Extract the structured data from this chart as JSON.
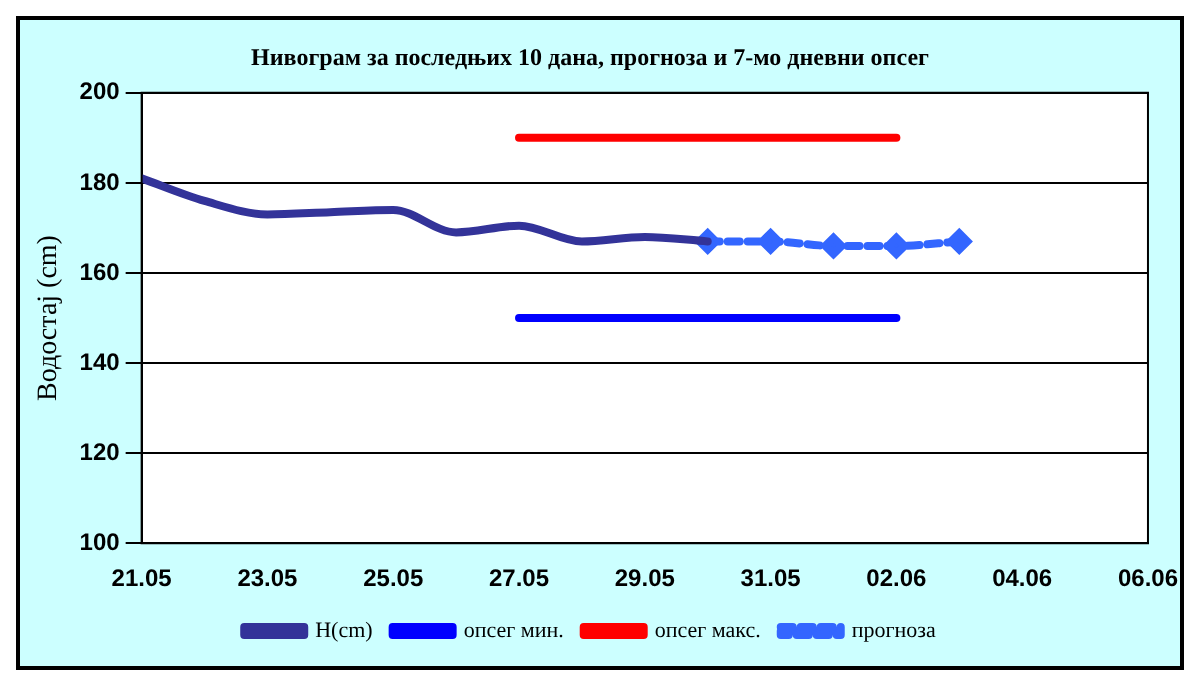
{
  "chart_data": {
    "type": "line",
    "title": "Нивограм за последњих 10 дана, прогноза и 7-мо дневни опсег",
    "ylabel": "Водостај (cm)",
    "series": [
      {
        "name": "H(cm)",
        "color": "#333399",
        "x": [
          "--05-21",
          "--05-22",
          "--05-23",
          "--05-24",
          "--05-25",
          "--05-26",
          "--05-27",
          "--05-28",
          "--05-29",
          "--05-30"
        ],
        "values": [
          181,
          176,
          173,
          173.5,
          174,
          169,
          170.5,
          167,
          168,
          167
        ],
        "marker": "none",
        "line_style": "solid"
      },
      {
        "name": "опсег мин.",
        "color": "#0000ff",
        "x": [
          "--05-27",
          "--06-02"
        ],
        "values": [
          150,
          150
        ],
        "marker": "none",
        "line_style": "solid"
      },
      {
        "name": "опсег макс.",
        "color": "#ff0000",
        "x": [
          "--05-27",
          "--06-02"
        ],
        "values": [
          190,
          190
        ],
        "marker": "none",
        "line_style": "solid"
      },
      {
        "name": "прогноза",
        "color": "#3366ff",
        "x": [
          "--05-30",
          "--05-31",
          "--06-01",
          "--06-02",
          "--06-03"
        ],
        "values": [
          167,
          167,
          166,
          166,
          167
        ],
        "marker": "diamond",
        "line_style": "dashed"
      }
    ],
    "xlim": [
      "--05-21",
      "--06-06"
    ],
    "xticks": [
      {
        "value": "--05-21",
        "label": "21.05"
      },
      {
        "value": "--05-23",
        "label": "23.05"
      },
      {
        "value": "--05-25",
        "label": "25.05"
      },
      {
        "value": "--05-27",
        "label": "27.05"
      },
      {
        "value": "--05-29",
        "label": "29.05"
      },
      {
        "value": "--05-31",
        "label": "31.05"
      },
      {
        "value": "--06-02",
        "label": "02.06"
      },
      {
        "value": "--06-04",
        "label": "04.06"
      },
      {
        "value": "--06-06",
        "label": "06.06"
      }
    ],
    "ylim": [
      100,
      200
    ],
    "yticks": [
      100,
      120,
      140,
      160,
      180,
      200
    ],
    "grid": "y",
    "legend": "bottom"
  }
}
